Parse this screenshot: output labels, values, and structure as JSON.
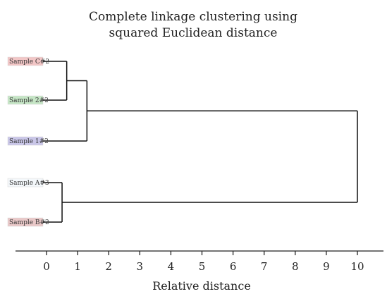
{
  "chart_data": {
    "type": "dendrogram",
    "title_lines": [
      "Complete linkage clustering using",
      "squared Euclidean distance"
    ],
    "xlabel": "Relative distance",
    "xlim": [
      0,
      10
    ],
    "xticks": [
      "0",
      "1",
      "2",
      "3",
      "4",
      "5",
      "6",
      "7",
      "8",
      "9",
      "10"
    ],
    "leaves": [
      {
        "id": "c",
        "label": "Sample C#2",
        "color": "#f2c6c6"
      },
      {
        "id": "two",
        "label": "Sample 2#2",
        "color": "#c6e6c6"
      },
      {
        "id": "one",
        "label": "Sample 1#2",
        "color": "#c9c6e8"
      },
      {
        "id": "a",
        "label": "Sample A#3",
        "color": "#f4f8fb"
      },
      {
        "id": "b",
        "label": "Sample B#2",
        "color": "#e9c8c8"
      }
    ],
    "merges": [
      {
        "id": "m1",
        "children": [
          "c",
          "two"
        ],
        "distance": 0.65
      },
      {
        "id": "m2",
        "children": [
          "m1",
          "one"
        ],
        "distance": 1.3
      },
      {
        "id": "m3",
        "children": [
          "a",
          "b"
        ],
        "distance": 0.5
      },
      {
        "id": "m4",
        "children": [
          "m2",
          "m3"
        ],
        "distance": 10.0
      }
    ]
  }
}
